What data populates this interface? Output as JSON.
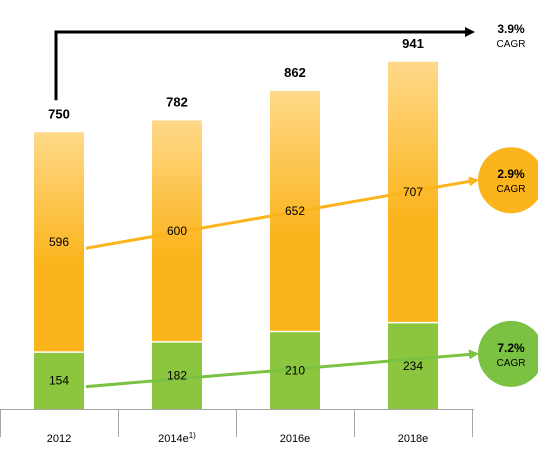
{
  "chart_data": {
    "type": "bar",
    "stacked": true,
    "categories": [
      "2012",
      "2014e",
      "2016e",
      "2018e"
    ],
    "category_footnotes": [
      "",
      "1)",
      "",
      ""
    ],
    "series": [
      {
        "values": [
          154,
          182,
          210,
          234
        ],
        "color": "#8cc63f"
      },
      {
        "values": [
          596,
          600,
          652,
          707
        ],
        "color": "#fbb41c",
        "gradient_top": "#ffd98a"
      }
    ],
    "totals": [
      750,
      782,
      862,
      941
    ],
    "cagr": [
      {
        "value": "3.9%",
        "label": "CAGR",
        "applies_to": "total",
        "color": "#000000"
      },
      {
        "value": "2.9%",
        "label": "CAGR",
        "applies_to": 1,
        "color": "#fbb41c"
      },
      {
        "value": "7.2%",
        "label": "CAGR",
        "applies_to": 0,
        "color": "#7cc242"
      }
    ],
    "ylim": [
      0,
      1000
    ],
    "grid": false,
    "legend": "none"
  }
}
